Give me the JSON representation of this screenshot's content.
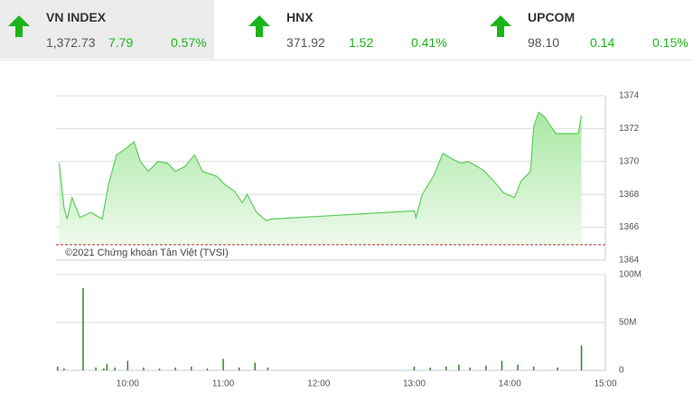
{
  "indices": [
    {
      "name": "VN INDEX",
      "value": "1,372.73",
      "change": "7.79",
      "percent": "0.57%"
    },
    {
      "name": "HNX",
      "value": "371.92",
      "change": "1.52",
      "percent": "0.41%"
    },
    {
      "name": "UPCOM",
      "value": "98.10",
      "change": "0.14",
      "percent": "0.15%"
    }
  ],
  "chart_data": [
    {
      "type": "area",
      "annotation": "©2021 Chứng khoán Tân Việt (TVSI)",
      "color": "#5ccd5c",
      "reference": 1364.94,
      "x": [
        "09:17",
        "09:20",
        "09:22",
        "09:25",
        "09:30",
        "09:37",
        "09:44",
        "09:48",
        "09:53",
        "09:59",
        "10:04",
        "10:08",
        "10:13",
        "10:19",
        "10:25",
        "10:30",
        "10:36",
        "10:42",
        "10:47",
        "10:56",
        "11:01",
        "11:07",
        "11:12",
        "11:15",
        "11:21",
        "11:27",
        "11:30",
        "13:00",
        "13:01",
        "13:05",
        "13:12",
        "13:18",
        "13:23",
        "13:29",
        "13:34",
        "13:43",
        "13:50",
        "13:56",
        "14:03",
        "14:07",
        "14:13",
        "14:15",
        "14:18",
        "14:22",
        "14:26",
        "14:29",
        "14:34",
        "14:43",
        "14:45"
      ],
      "values": [
        1369.9,
        1367.2,
        1366.5,
        1367.8,
        1366.6,
        1366.9,
        1366.5,
        1368.6,
        1370.4,
        1370.8,
        1371.2,
        1370.0,
        1369.4,
        1370.0,
        1369.9,
        1369.4,
        1369.7,
        1370.4,
        1369.4,
        1369.1,
        1368.6,
        1368.2,
        1367.5,
        1368.0,
        1366.9,
        1366.4,
        1366.5,
        1367.0,
        1366.6,
        1368.0,
        1369.1,
        1370.5,
        1370.2,
        1369.9,
        1370.0,
        1369.5,
        1368.8,
        1368.1,
        1367.8,
        1368.8,
        1369.4,
        1372.1,
        1373.0,
        1372.7,
        1372.1,
        1371.7,
        1371.7,
        1371.7,
        1372.8
      ],
      "xlim": [
        "09:15",
        "15:00"
      ],
      "ylim": [
        1364,
        1374
      ],
      "yticks": [
        1364,
        1366,
        1368,
        1370,
        1372,
        1374
      ],
      "grid": true
    },
    {
      "type": "bar",
      "color": "#2a8a2a",
      "x": [
        "09:16",
        "09:20",
        "09:32",
        "09:40",
        "09:45",
        "09:47",
        "09:52",
        "10:00",
        "10:10",
        "10:20",
        "10:30",
        "10:40",
        "10:50",
        "11:00",
        "11:10",
        "11:20",
        "11:28",
        "13:00",
        "13:10",
        "13:20",
        "13:28",
        "13:35",
        "13:45",
        "13:55",
        "14:05",
        "14:15",
        "14:30",
        "14:45"
      ],
      "values": [
        4000000,
        2000000,
        86000000,
        3000000,
        2000000,
        7000000,
        3000000,
        10000000,
        3000000,
        2000000,
        3000000,
        4000000,
        2000000,
        12000000,
        3000000,
        8000000,
        3000000,
        4000000,
        3000000,
        4000000,
        6000000,
        3000000,
        5000000,
        10000000,
        6000000,
        4000000,
        3000000,
        26000000
      ],
      "xlim": [
        "09:15",
        "15:00"
      ],
      "xticks": [
        "10:00",
        "11:00",
        "12:00",
        "13:00",
        "14:00",
        "15:00"
      ],
      "ylim": [
        0,
        100000000
      ],
      "yticks": [
        0,
        {
          "value": 50000000,
          "label": "50M"
        },
        {
          "value": 100000000,
          "label": "100M"
        }
      ],
      "grid": true
    }
  ]
}
